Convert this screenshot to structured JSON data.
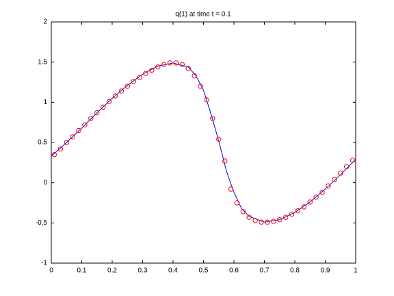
{
  "chart_data": {
    "type": "line",
    "title": "q(1)   at time t = 0.1",
    "xlim": [
      0,
      1
    ],
    "xticks": [
      0,
      0.1,
      0.2,
      0.3,
      0.4,
      0.5,
      0.6,
      0.7,
      0.8,
      0.9,
      1
    ],
    "ylim": [
      -1,
      2
    ],
    "yticks": [
      -1,
      -0.5,
      0,
      0.5,
      1,
      1.5,
      2
    ],
    "grid": false,
    "series": [
      {
        "color": "#0000ff",
        "style": "line",
        "x": [
          0,
          0.05,
          0.1,
          0.15,
          0.2,
          0.25,
          0.3,
          0.35,
          0.4,
          0.45,
          0.475,
          0.5,
          0.525,
          0.55,
          0.575,
          0.6,
          0.625,
          0.65,
          0.7,
          0.75,
          0.8,
          0.85,
          0.9,
          0.95,
          1
        ],
        "values": [
          0.33,
          0.5,
          0.68,
          0.87,
          1.05,
          1.21,
          1.35,
          1.45,
          1.49,
          1.44,
          1.33,
          1.15,
          0.85,
          0.52,
          0.15,
          -0.12,
          -0.32,
          -0.42,
          -0.49,
          -0.46,
          -0.37,
          -0.24,
          -0.08,
          0.1,
          0.29
        ]
      },
      {
        "color": "#ff0000",
        "style": "circle",
        "x": [
          0.01,
          0.03,
          0.05,
          0.07,
          0.09,
          0.11,
          0.13,
          0.15,
          0.17,
          0.19,
          0.21,
          0.23,
          0.25,
          0.27,
          0.29,
          0.31,
          0.33,
          0.35,
          0.37,
          0.39,
          0.41,
          0.43,
          0.45,
          0.47,
          0.49,
          0.51,
          0.53,
          0.55,
          0.57,
          0.59,
          0.61,
          0.63,
          0.65,
          0.67,
          0.69,
          0.71,
          0.73,
          0.75,
          0.77,
          0.79,
          0.81,
          0.83,
          0.85,
          0.87,
          0.89,
          0.91,
          0.93,
          0.95,
          0.97,
          0.99
        ],
        "values": [
          0.35,
          0.42,
          0.5,
          0.57,
          0.65,
          0.72,
          0.8,
          0.87,
          0.94,
          1.01,
          1.08,
          1.14,
          1.2,
          1.26,
          1.31,
          1.36,
          1.4,
          1.44,
          1.47,
          1.49,
          1.49,
          1.47,
          1.42,
          1.33,
          1.2,
          1.03,
          0.8,
          0.54,
          0.27,
          -0.08,
          -0.25,
          -0.36,
          -0.43,
          -0.47,
          -0.49,
          -0.49,
          -0.48,
          -0.46,
          -0.43,
          -0.39,
          -0.35,
          -0.3,
          -0.24,
          -0.18,
          -0.12,
          -0.04,
          0.04,
          0.12,
          0.2,
          0.28
        ]
      }
    ]
  }
}
